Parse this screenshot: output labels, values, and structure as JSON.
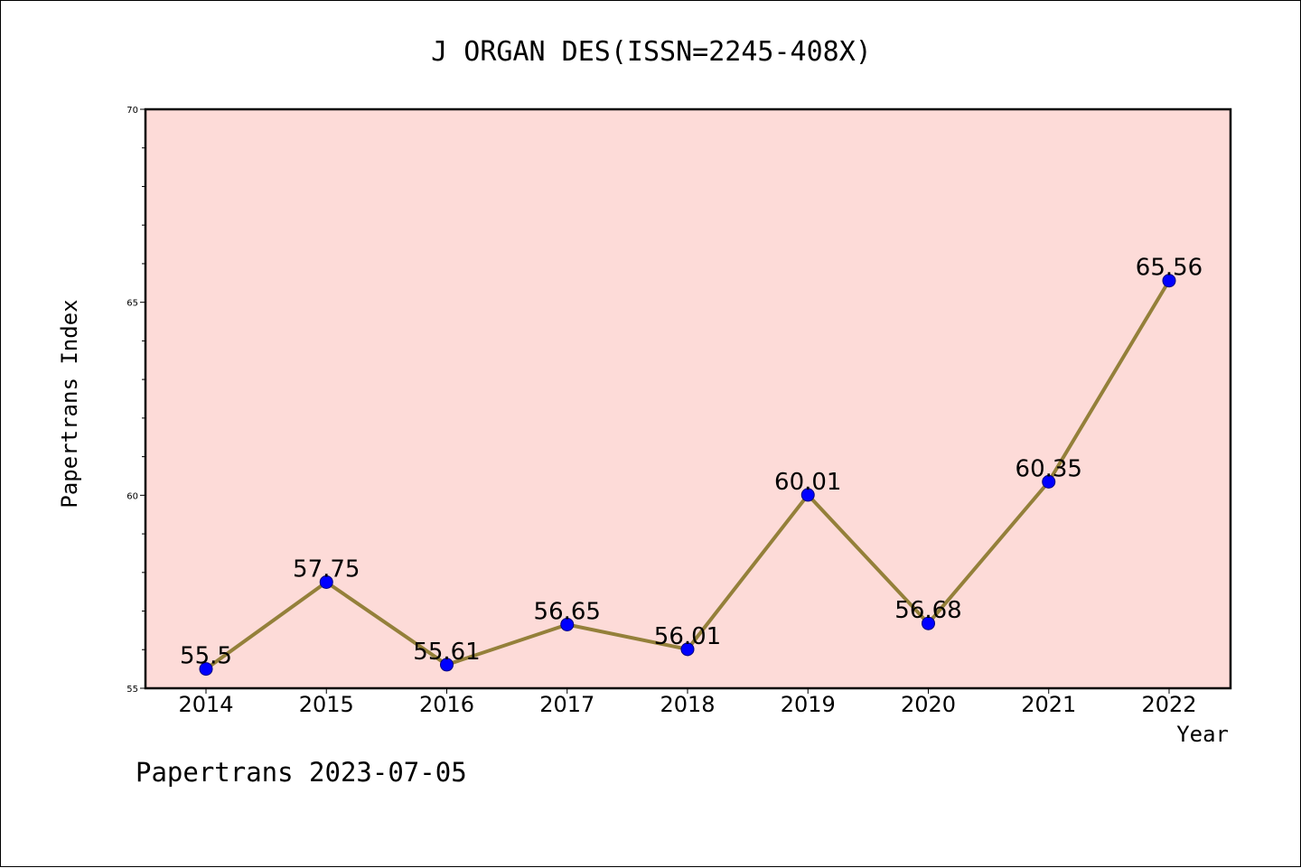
{
  "footer": "Papertrans 2023-07-05",
  "colors": {
    "plot_background": "#fddbd8",
    "line": "#94803a",
    "marker": "#0000ff",
    "marker_edge": "#000080"
  },
  "chart_data": {
    "type": "line",
    "title": "J ORGAN DES(ISSN=2245-408X)",
    "xlabel": "Year",
    "ylabel": "Papertrans Index",
    "categories": [
      "2014",
      "2015",
      "2016",
      "2017",
      "2018",
      "2019",
      "2020",
      "2021",
      "2022"
    ],
    "series": [
      {
        "values": [
          55.5,
          57.75,
          55.61,
          56.65,
          56.01,
          60.01,
          56.68,
          60.35,
          65.56
        ],
        "labels": [
          "55.5",
          "57.75",
          "55.61",
          "56.65",
          "56.01",
          "60.01",
          "56.68",
          "60.35",
          "65.56"
        ]
      }
    ],
    "ylim": [
      55,
      70
    ],
    "yticks": [
      "55",
      "60",
      "65",
      "70"
    ],
    "grid": false,
    "legend": "none"
  }
}
